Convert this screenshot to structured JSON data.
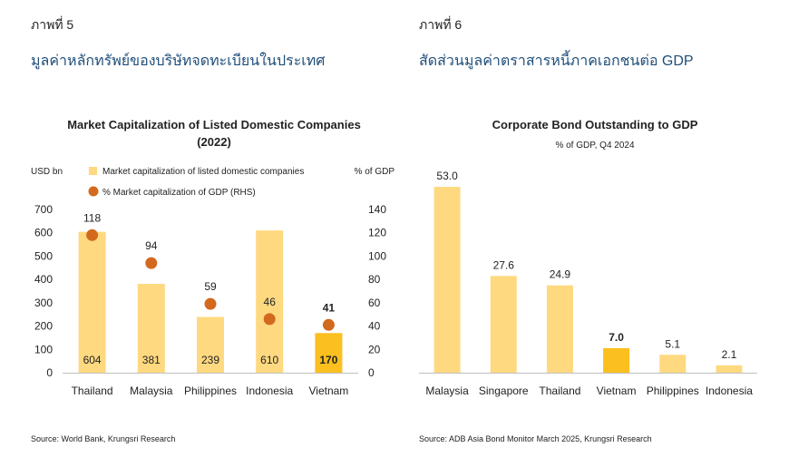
{
  "left": {
    "figure_label": "ภาพที่ 5",
    "heading": "มูลค่าหลักทรัพย์ของบริษัทจดทะเบียนในประเทศ",
    "source": "Source: World Bank, Krungsri Research"
  },
  "right": {
    "figure_label": "ภาพที่ 6",
    "heading": "สัดส่วนมูลค่าตราสารหนี้ภาคเอกชนต่อ GDP",
    "source": "Source: ADB Asia Bond Monitor March 2025, Krungsri Research"
  },
  "chart_data": [
    {
      "type": "bar",
      "title": "Market Capitalization of Listed Domestic Companies",
      "subtitle": "(2022)",
      "ylabel": "USD bn",
      "y2label": "% of GDP",
      "ylim": [
        0,
        700
      ],
      "yticks": [
        "0",
        "100",
        "200",
        "300",
        "400",
        "500",
        "600",
        "700"
      ],
      "y2lim": [
        0,
        140
      ],
      "y2ticks": [
        "0",
        "20",
        "40",
        "60",
        "80",
        "100",
        "120",
        "140"
      ],
      "categories": [
        "Thailand",
        "Malaysia",
        "Philippines",
        "Indonesia",
        "Vietnam"
      ],
      "highlight": "Vietnam",
      "legend_position": "top",
      "series": [
        {
          "name": "Market capitalization of listed domestic companies",
          "kind": "bar",
          "axis": "left",
          "values": [
            604,
            381,
            239,
            610,
            170
          ],
          "labels": [
            "604",
            "381",
            "239",
            "610",
            "170"
          ]
        },
        {
          "name": "% Market capitalization of GDP (RHS)",
          "kind": "dot",
          "axis": "right",
          "values": [
            118,
            94,
            59,
            46,
            41
          ],
          "labels": [
            "118",
            "94",
            "59",
            "46",
            "41"
          ]
        }
      ],
      "colors": {
        "bar": "#ffd980",
        "highlight": "#fbbf1f",
        "dot": "#d2691e"
      }
    },
    {
      "type": "bar",
      "title": "Corporate Bond Outstanding to GDP",
      "subtitle": "% of GDP, Q4 2024",
      "ylim": [
        0,
        60
      ],
      "categories": [
        "Malaysia",
        "Singapore",
        "Thailand",
        "Vietnam",
        "Philippines",
        "Indonesia"
      ],
      "highlight": "Vietnam",
      "values": [
        53.0,
        27.6,
        24.9,
        7.0,
        5.1,
        2.1
      ],
      "labels": [
        "53.0",
        "27.6",
        "24.9",
        "7.0",
        "5.1",
        "2.1"
      ],
      "colors": {
        "bar": "#ffd980",
        "highlight": "#fbbf1f"
      }
    }
  ]
}
